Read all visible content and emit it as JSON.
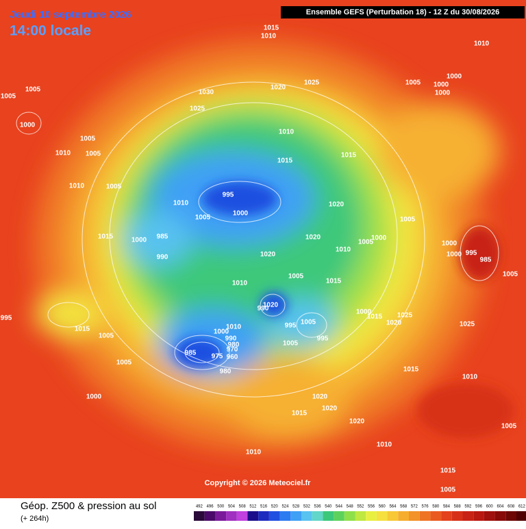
{
  "header": {
    "date": "Jeudi 10 septembre 2026",
    "time": "14:00 locale",
    "run": "Ensemble GEFS  (Perturbation 18)  -  12 Z du 30/08/2026"
  },
  "copyright": "Copyright © 2026 Meteociel.fr",
  "footer": {
    "title": "Géop. Z500 & pression au sol",
    "lead": "(+ 264h)"
  },
  "colorbar": {
    "labels": [
      492,
      496,
      500,
      504,
      508,
      512,
      516,
      520,
      524,
      528,
      532,
      536,
      540,
      544,
      548,
      552,
      556,
      560,
      564,
      568,
      572,
      576,
      580,
      584,
      588,
      592,
      596,
      600,
      604,
      608,
      612
    ],
    "colors": [
      "#2a0a3a",
      "#4b0a6a",
      "#7a1a9a",
      "#a030c0",
      "#c040e0",
      "#1c0e8a",
      "#1e2bbf",
      "#1f4fe0",
      "#2d7bf0",
      "#3fa0f5",
      "#58c2f0",
      "#62d6c8",
      "#3cc87a",
      "#5cd25c",
      "#8ee04a",
      "#bfe840",
      "#e8ef40",
      "#f5e040",
      "#f8c836",
      "#f6ad2e",
      "#f29228",
      "#ee7424",
      "#ea5a20",
      "#e3421c",
      "#d73018",
      "#c82214",
      "#b81810",
      "#a0100c",
      "#880a08",
      "#6e0604",
      "#500000"
    ]
  },
  "isobar_labels": [
    1015,
    1010,
    1010,
    1005,
    1005,
    1000,
    1005,
    1010,
    1005,
    1030,
    1020,
    1025,
    1025,
    1005,
    1000,
    1000,
    1000,
    1010,
    1015,
    1015,
    1010,
    1005,
    995,
    1000,
    1010,
    1005,
    1020,
    1015,
    1000,
    985,
    990,
    1020,
    1005,
    1000,
    1020,
    1010,
    1005,
    1000,
    1000,
    995,
    985,
    1005,
    1015,
    1010,
    1020,
    990,
    995,
    1015,
    1005,
    1010,
    1000,
    990,
    980,
    970,
    960,
    975,
    985,
    980,
    995,
    1005,
    1005,
    995,
    1000,
    1015,
    1020,
    1025,
    1025,
    1005,
    1015,
    1010,
    1000,
    1020,
    1020,
    1015,
    1020,
    1005,
    1010,
    1010,
    1015,
    1005,
    1005
  ]
}
